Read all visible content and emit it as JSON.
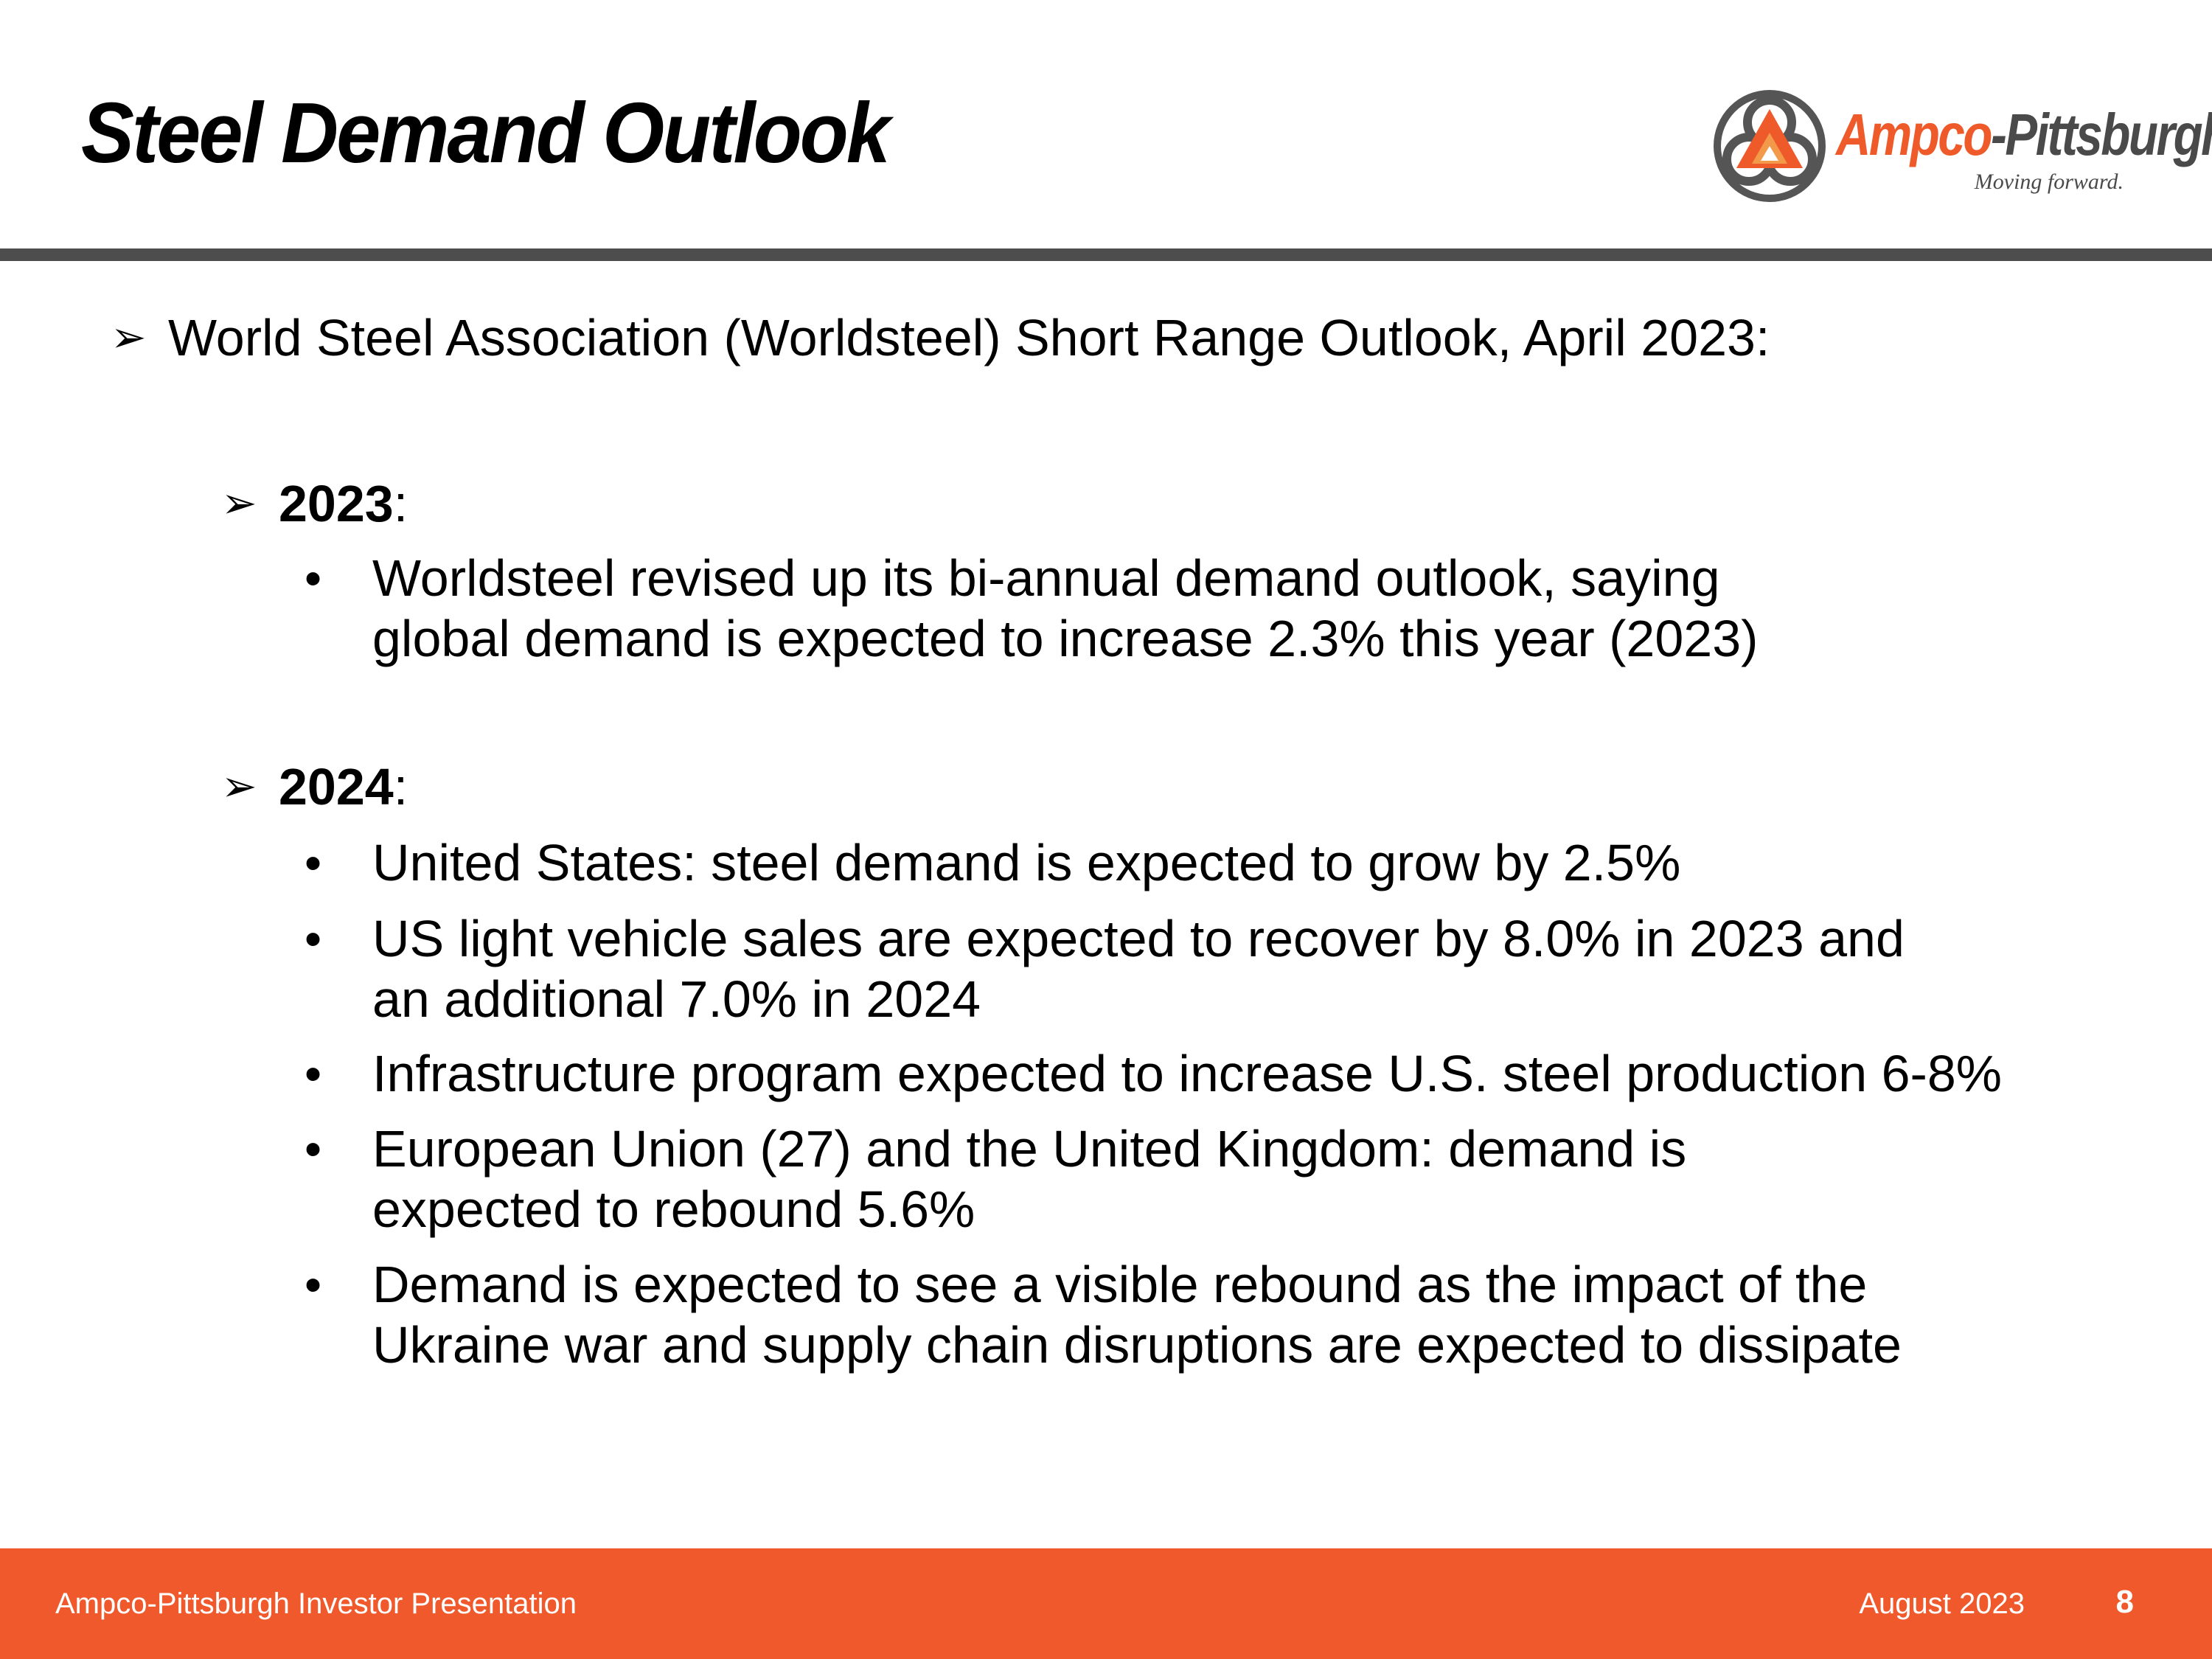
{
  "header": {
    "title": "Steel Demand Outlook"
  },
  "logo": {
    "name_part1": "Ampco",
    "name_part2": "-Pittsburgh",
    "tagline": "Moving forward."
  },
  "content": {
    "intro": {
      "marker": "➢",
      "text": "World Steel Association (Worldsteel) Short Range Outlook, April 2023:"
    },
    "sections": [
      {
        "marker": "➢",
        "year": "2023",
        "suffix": ":",
        "bullets": [
          {
            "symbol": "•",
            "lines": [
              "Worldsteel revised up its bi-annual demand outlook, saying",
              "global demand is expected to increase 2.3% this year (2023)"
            ]
          }
        ]
      },
      {
        "marker": "➢",
        "year": "2024",
        "suffix": ":",
        "bullets": [
          {
            "symbol": "•",
            "lines": [
              "United States: steel demand is expected to grow by 2.5%"
            ]
          },
          {
            "symbol": "•",
            "lines": [
              "US light vehicle sales are expected to recover by 8.0% in 2023 and",
              "an additional 7.0% in 2024"
            ]
          },
          {
            "symbol": "•",
            "lines": [
              "Infrastructure program expected to increase U.S. steel production 6-8%"
            ]
          },
          {
            "symbol": "•",
            "lines": [
              "European Union (27) and the United Kingdom: demand is",
              "expected to rebound 5.6%"
            ]
          },
          {
            "symbol": "•",
            "lines": [
              "Demand is expected to see a visible rebound as the impact of the",
              "Ukraine war and supply chain disruptions are expected to dissipate"
            ]
          }
        ]
      }
    ]
  },
  "footer": {
    "presentation": "Ampco-Pittsburgh Investor Presentation",
    "date": "August 2023",
    "page": "8"
  },
  "colors": {
    "accent": "#ef592b",
    "rule": "#4d4d4d",
    "logo_gray": "#4a4a4a"
  }
}
